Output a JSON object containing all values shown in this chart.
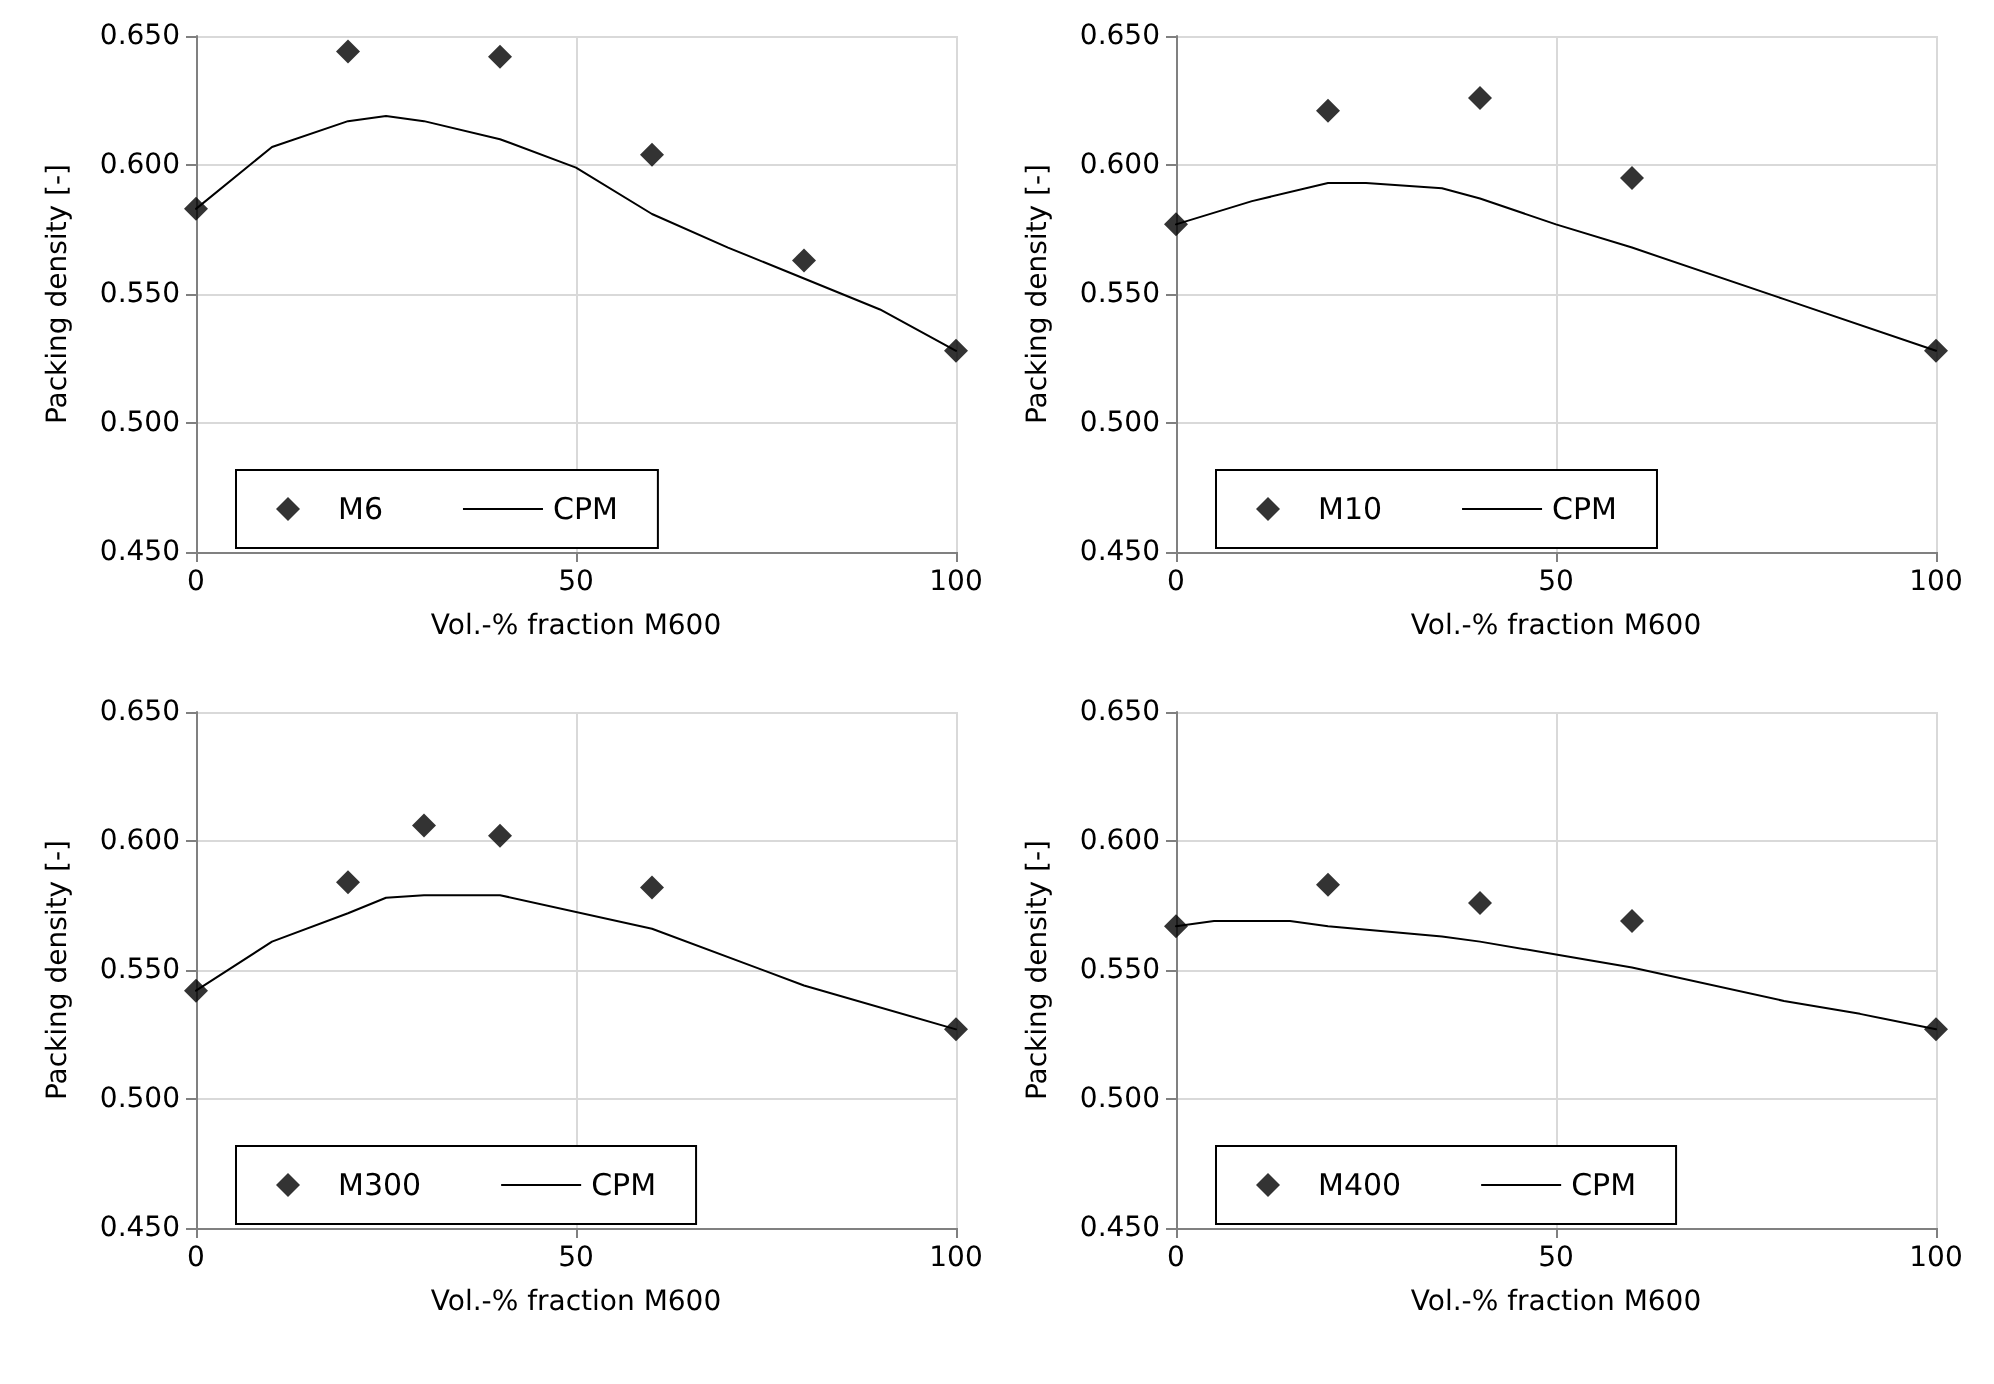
{
  "chart_data": [
    {
      "type": "scatter",
      "xlabel": "Vol.-% fraction M600",
      "ylabel": "Packing density [-]",
      "xlim": [
        0,
        100
      ],
      "ylim": [
        0.45,
        0.65
      ],
      "xticks": [
        0,
        50,
        100
      ],
      "yticks": [
        {
          "value": 0.45,
          "label": "0.450"
        },
        {
          "value": 0.5,
          "label": "0.500"
        },
        {
          "value": 0.55,
          "label": "0.550"
        },
        {
          "value": 0.6,
          "label": "0.600"
        },
        {
          "value": 0.65,
          "label": "0.650"
        }
      ],
      "grid": true,
      "legend": "bottom",
      "series": [
        {
          "name": "M6",
          "type": "scatter",
          "marker": "diamond",
          "color": "#000000",
          "x": [
            0,
            20,
            40,
            60,
            80,
            100
          ],
          "values": [
            0.583,
            0.644,
            0.642,
            0.604,
            0.563,
            0.528
          ]
        },
        {
          "name": "CPM",
          "type": "line",
          "marker": "none",
          "line_style": "solid",
          "color": "#000000",
          "x": [
            0,
            10,
            20,
            25,
            30,
            40,
            50,
            60,
            70,
            80,
            90,
            100
          ],
          "values": [
            0.583,
            0.607,
            0.617,
            0.619,
            0.617,
            0.61,
            0.599,
            0.581,
            0.568,
            0.556,
            0.544,
            0.528
          ]
        }
      ]
    },
    {
      "type": "scatter",
      "xlabel": "Vol.-% fraction M600",
      "ylabel": "Packing density [-]",
      "xlim": [
        0,
        100
      ],
      "ylim": [
        0.45,
        0.65
      ],
      "xticks": [
        0,
        50,
        100
      ],
      "yticks": [
        {
          "value": 0.45,
          "label": "0.450"
        },
        {
          "value": 0.5,
          "label": "0.500"
        },
        {
          "value": 0.55,
          "label": "0.550"
        },
        {
          "value": 0.6,
          "label": "0.600"
        },
        {
          "value": 0.65,
          "label": "0.650"
        }
      ],
      "grid": true,
      "legend": "bottom",
      "series": [
        {
          "name": "M10",
          "type": "scatter",
          "marker": "diamond",
          "color": "#000000",
          "x": [
            0,
            20,
            40,
            60,
            100
          ],
          "values": [
            0.577,
            0.621,
            0.626,
            0.595,
            0.528
          ]
        },
        {
          "name": "CPM",
          "type": "line",
          "marker": "none",
          "line_style": "solid",
          "color": "#000000",
          "x": [
            0,
            10,
            20,
            25,
            35,
            40,
            50,
            60,
            80,
            100
          ],
          "values": [
            0.577,
            0.586,
            0.593,
            0.593,
            0.591,
            0.587,
            0.577,
            0.568,
            0.548,
            0.528
          ]
        }
      ]
    },
    {
      "type": "scatter",
      "xlabel": "Vol.-% fraction M600",
      "ylabel": "Packing density [-]",
      "xlim": [
        0,
        100
      ],
      "ylim": [
        0.45,
        0.65
      ],
      "xticks": [
        0,
        50,
        100
      ],
      "yticks": [
        {
          "value": 0.45,
          "label": "0.450"
        },
        {
          "value": 0.5,
          "label": "0.500"
        },
        {
          "value": 0.55,
          "label": "0.550"
        },
        {
          "value": 0.6,
          "label": "0.600"
        },
        {
          "value": 0.65,
          "label": "0.650"
        }
      ],
      "grid": true,
      "legend": "bottom",
      "series": [
        {
          "name": "M300",
          "type": "scatter",
          "marker": "diamond",
          "color": "#000000",
          "x": [
            0,
            20,
            30,
            40,
            60,
            100
          ],
          "values": [
            0.542,
            0.584,
            0.606,
            0.602,
            0.582,
            0.527
          ]
        },
        {
          "name": "CPM",
          "type": "line",
          "marker": "none",
          "line_style": "solid",
          "color": "#000000",
          "x": [
            0,
            10,
            20,
            25,
            30,
            40,
            60,
            80,
            100
          ],
          "values": [
            0.542,
            0.561,
            0.572,
            0.578,
            0.579,
            0.579,
            0.566,
            0.544,
            0.527
          ]
        }
      ]
    },
    {
      "type": "scatter",
      "xlabel": "Vol.-% fraction M600",
      "ylabel": "Packing density [-]",
      "xlim": [
        0,
        100
      ],
      "ylim": [
        0.45,
        0.65
      ],
      "xticks": [
        0,
        50,
        100
      ],
      "yticks": [
        {
          "value": 0.45,
          "label": "0.450"
        },
        {
          "value": 0.5,
          "label": "0.500"
        },
        {
          "value": 0.55,
          "label": "0.550"
        },
        {
          "value": 0.6,
          "label": "0.600"
        },
        {
          "value": 0.65,
          "label": "0.650"
        }
      ],
      "grid": true,
      "legend": "bottom",
      "series": [
        {
          "name": "M400",
          "type": "scatter",
          "marker": "diamond",
          "color": "#000000",
          "x": [
            0,
            20,
            40,
            60,
            100
          ],
          "values": [
            0.567,
            0.583,
            0.576,
            0.569,
            0.527
          ]
        },
        {
          "name": "CPM",
          "type": "line",
          "marker": "none",
          "line_style": "solid",
          "color": "#000000",
          "x": [
            0,
            5,
            15,
            20,
            35,
            40,
            50,
            60,
            80,
            90,
            100
          ],
          "values": [
            0.567,
            0.569,
            0.569,
            0.567,
            0.563,
            0.561,
            0.556,
            0.551,
            0.538,
            0.533,
            0.527
          ]
        }
      ]
    }
  ]
}
